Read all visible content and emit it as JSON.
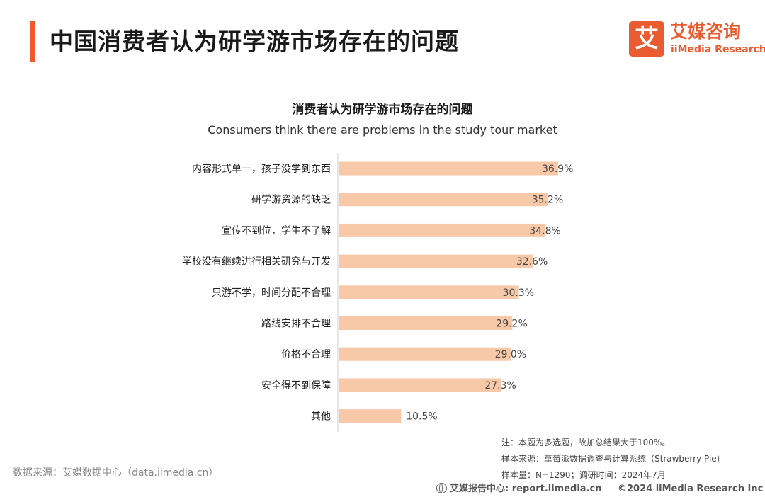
{
  "header": {
    "title": "中国消费者认为研学游市场存在的问题",
    "logo_mark": "艾",
    "logo_cn": "艾媒咨询",
    "logo_en": "iiMedia Research"
  },
  "chart_data": {
    "type": "bar",
    "orientation": "horizontal",
    "title": "消费者认为研学游市场存在的问题",
    "subtitle": "Consumers think there are problems in the study tour market",
    "categories": [
      "内容形式单一，孩子没学到东西",
      "研学游资源的缺乏",
      "宣传不到位，学生不了解",
      "学校没有继续进行相关研究与开发",
      "只游不学，时间分配不合理",
      "路线安排不合理",
      "价格不合理",
      "安全得不到保障",
      "其他"
    ],
    "values": [
      36.9,
      35.2,
      34.8,
      32.6,
      30.3,
      29.2,
      29.0,
      27.3,
      10.5
    ],
    "value_labels": [
      "36.9%",
      "35.2%",
      "34.8%",
      "32.6%",
      "30.3%",
      "29.2%",
      "29.0%",
      "27.3%",
      "10.5%"
    ],
    "unit": "%",
    "xlim": [
      0,
      40
    ],
    "bar_color": "#f8c9a8",
    "grid": false,
    "legend": "none"
  },
  "notes": {
    "line1": "注：本题为多选题，故加总结果大于100%。",
    "line2": "样本来源：草莓派数据调查与计算系统（Strawberry Pie）",
    "line3": "样本量：N=1290；调研时间：2024年7月"
  },
  "footer": {
    "source": "数据来源：艾媒数据中心（data.iimedia.cn）",
    "report_label": "艾媒报告中心: report.iimedia.cn",
    "copyright": "©2024  iiMedia Research  Inc"
  }
}
